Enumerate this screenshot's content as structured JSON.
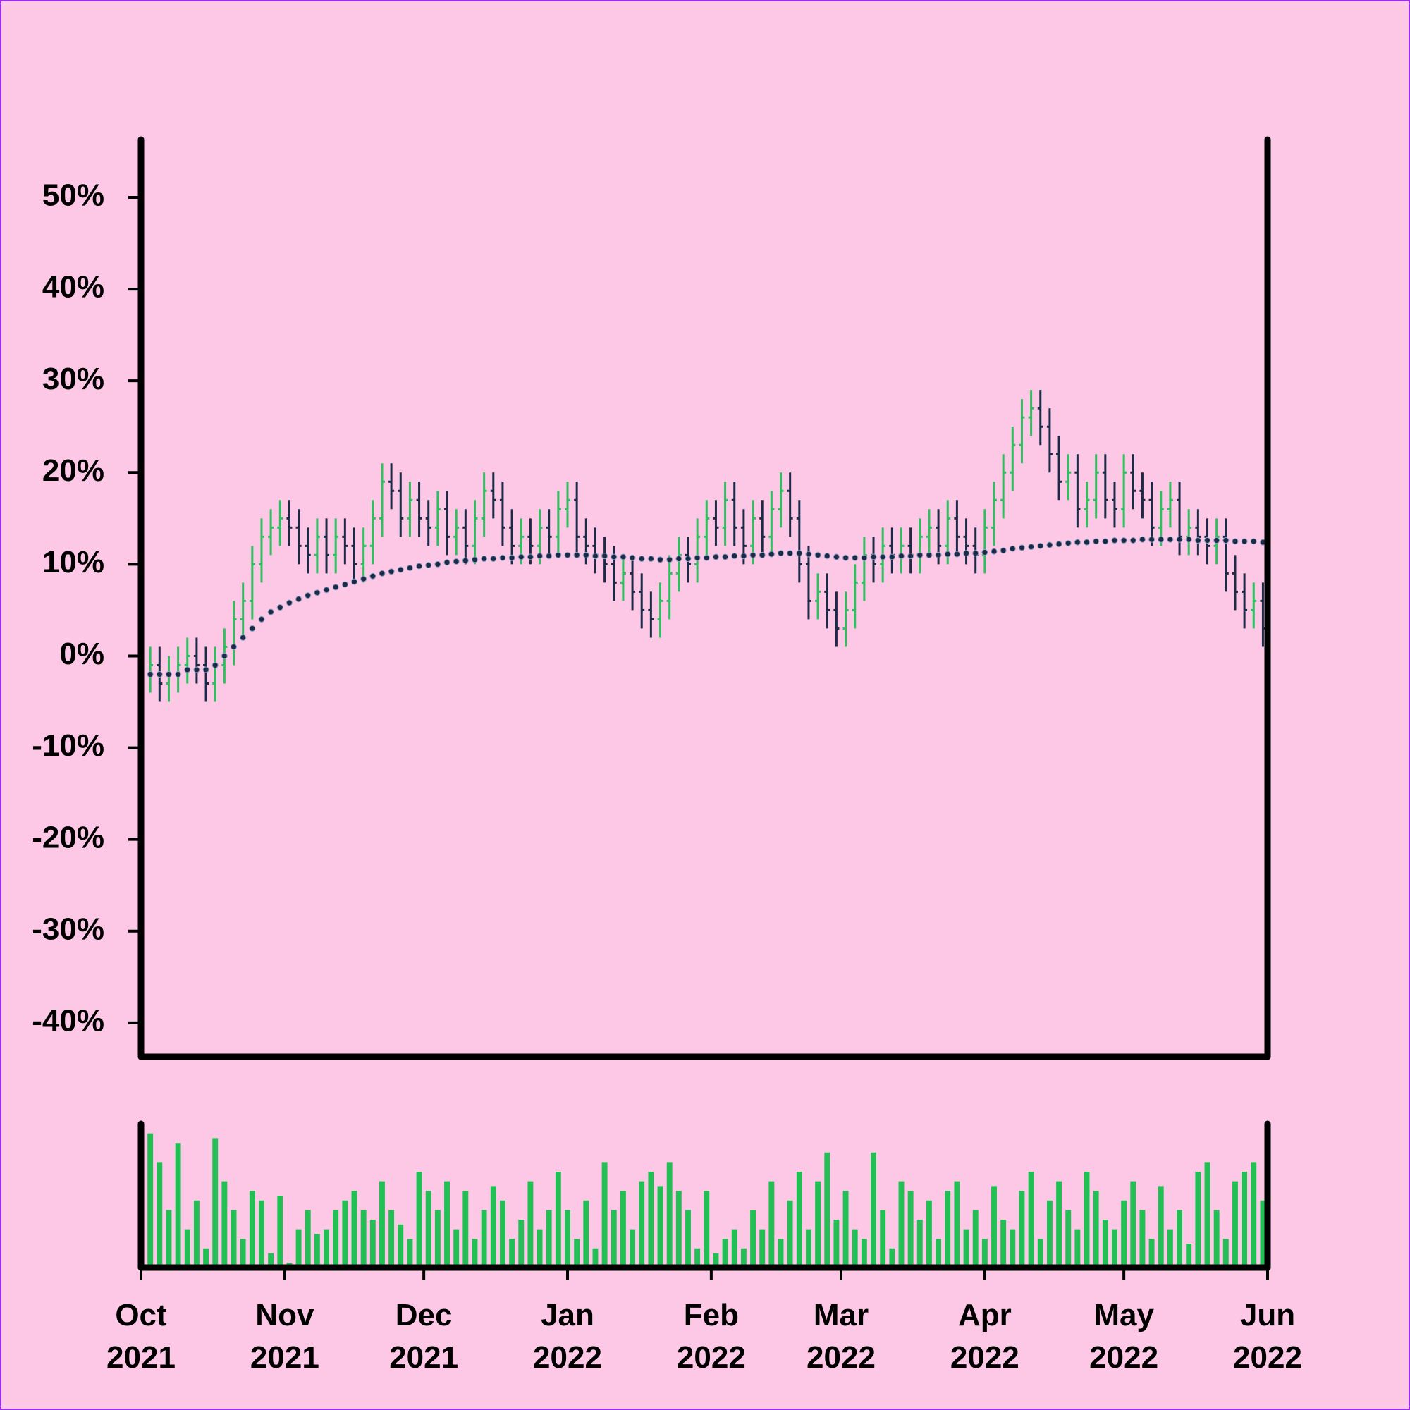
{
  "chart_data": {
    "type": "ohlc",
    "x": [
      0,
      2,
      4,
      6,
      8,
      10,
      12,
      14,
      16,
      18,
      20,
      22,
      24,
      26,
      28,
      30,
      32,
      34,
      36,
      38,
      40,
      42,
      44,
      46,
      48,
      50,
      52,
      54,
      56,
      58,
      60,
      62,
      64,
      66,
      68,
      70,
      72,
      74,
      76,
      78,
      80,
      82,
      84,
      86,
      88,
      90,
      92,
      94,
      96,
      98,
      100,
      102,
      104,
      106,
      108,
      110,
      112,
      114,
      116,
      118,
      120,
      122,
      124,
      126,
      128,
      130,
      132,
      134,
      136,
      138,
      140,
      142,
      144,
      146,
      148,
      150,
      152,
      154,
      156,
      158,
      160,
      162,
      164,
      166,
      168,
      170,
      172,
      174,
      176,
      178,
      180,
      182,
      184,
      186,
      188,
      190,
      192,
      194,
      196,
      198,
      200,
      202,
      204,
      206,
      208,
      210,
      212,
      214,
      216,
      218,
      220,
      222,
      224,
      226,
      228,
      230,
      232,
      234,
      236,
      238,
      240,
      242
    ],
    "xlim": [
      0,
      243
    ],
    "xticks": [
      {
        "value": 0,
        "label": "Oct\n2021"
      },
      {
        "value": 31,
        "label": "Nov\n2021"
      },
      {
        "value": 61,
        "label": "Dec\n2021"
      },
      {
        "value": 92,
        "label": "Jan\n2022"
      },
      {
        "value": 123,
        "label": "Feb\n2022"
      },
      {
        "value": 151,
        "label": "Mar\n2022"
      },
      {
        "value": 182,
        "label": "Apr\n2022"
      },
      {
        "value": 212,
        "label": "May\n2022"
      },
      {
        "value": 243,
        "label": "Jun\n2022"
      }
    ],
    "ylim": [
      -43.7,
      56.3
    ],
    "yticks": [
      {
        "value": -40,
        "label": "-40%"
      },
      {
        "value": -30,
        "label": "-30%"
      },
      {
        "value": -20,
        "label": "-20%"
      },
      {
        "value": -10,
        "label": "-10%"
      },
      {
        "value": 0,
        "label": "0%"
      },
      {
        "value": 10,
        "label": "10%"
      },
      {
        "value": 20,
        "label": "20%"
      },
      {
        "value": 30,
        "label": "30%"
      },
      {
        "value": 40,
        "label": "40%"
      },
      {
        "value": 50,
        "label": "50%"
      }
    ],
    "up_color": "#2fbf5f",
    "down_color": "#1b2a47",
    "open": [
      -1,
      -2,
      -1,
      -3,
      -2,
      -1,
      0,
      -1,
      -3,
      -1,
      1,
      4,
      6,
      10,
      13,
      14,
      15,
      14,
      12,
      11,
      13,
      11,
      13,
      12,
      10,
      12,
      15,
      19,
      18,
      15,
      17,
      15,
      14,
      16,
      13,
      14,
      12,
      15,
      18,
      17,
      14,
      12,
      13,
      12,
      14,
      13,
      16,
      17,
      13,
      12,
      11,
      10,
      8,
      9,
      7,
      5,
      4,
      6,
      9,
      11,
      10,
      13,
      15,
      14,
      17,
      14,
      12,
      15,
      13,
      16,
      18,
      15,
      10,
      6,
      7,
      5,
      3,
      5,
      8,
      11,
      10,
      12,
      11,
      12,
      11,
      13,
      14,
      12,
      15,
      13,
      12,
      11,
      14,
      17,
      20,
      23,
      26,
      27,
      25,
      22,
      19,
      20,
      16,
      17,
      20,
      17,
      16,
      20,
      18,
      17,
      14,
      16,
      17,
      13,
      14,
      13,
      12,
      13,
      9,
      7,
      5,
      6
    ],
    "high": [
      1,
      1,
      1,
      0,
      1,
      2,
      2,
      1,
      1,
      3,
      6,
      8,
      12,
      15,
      16,
      17,
      17,
      16,
      14,
      15,
      15,
      15,
      15,
      14,
      14,
      17,
      21,
      21,
      20,
      19,
      19,
      17,
      18,
      18,
      16,
      16,
      17,
      20,
      20,
      19,
      16,
      15,
      15,
      16,
      16,
      18,
      19,
      19,
      15,
      14,
      13,
      12,
      11,
      11,
      9,
      7,
      8,
      11,
      13,
      13,
      15,
      17,
      17,
      19,
      19,
      16,
      17,
      17,
      18,
      20,
      20,
      17,
      12,
      9,
      9,
      7,
      7,
      10,
      13,
      13,
      14,
      14,
      14,
      14,
      15,
      16,
      16,
      17,
      17,
      15,
      14,
      16,
      19,
      22,
      25,
      28,
      29,
      29,
      27,
      24,
      22,
      22,
      19,
      22,
      22,
      19,
      22,
      22,
      20,
      19,
      18,
      19,
      19,
      16,
      16,
      15,
      15,
      15,
      11,
      9,
      8,
      8
    ],
    "low": [
      -4,
      -4,
      -5,
      -5,
      -4,
      -3,
      -3,
      -5,
      -5,
      -3,
      -1,
      2,
      4,
      8,
      11,
      12,
      12,
      10,
      9,
      9,
      9,
      9,
      10,
      8,
      8,
      10,
      13,
      16,
      13,
      13,
      13,
      12,
      12,
      11,
      11,
      10,
      10,
      13,
      15,
      12,
      10,
      10,
      10,
      10,
      11,
      11,
      14,
      11,
      10,
      9,
      8,
      6,
      6,
      5,
      3,
      2,
      2,
      4,
      7,
      8,
      8,
      11,
      12,
      12,
      12,
      10,
      10,
      11,
      11,
      14,
      13,
      8,
      4,
      4,
      3,
      1,
      1,
      3,
      6,
      8,
      8,
      9,
      9,
      9,
      9,
      11,
      10,
      10,
      11,
      10,
      9,
      9,
      12,
      15,
      18,
      21,
      24,
      23,
      20,
      17,
      17,
      14,
      14,
      15,
      15,
      14,
      14,
      16,
      15,
      12,
      12,
      14,
      11,
      11,
      11,
      10,
      10,
      7,
      5,
      3,
      3,
      1
    ],
    "close": [
      -2,
      -1,
      -3,
      -2,
      -1,
      0,
      -1,
      -3,
      -1,
      1,
      4,
      6,
      10,
      13,
      14,
      15,
      14,
      12,
      11,
      13,
      11,
      13,
      12,
      10,
      12,
      15,
      19,
      18,
      15,
      17,
      15,
      14,
      16,
      13,
      14,
      12,
      15,
      18,
      17,
      14,
      12,
      13,
      12,
      14,
      13,
      16,
      17,
      13,
      12,
      11,
      10,
      8,
      9,
      7,
      5,
      4,
      6,
      9,
      11,
      10,
      13,
      15,
      14,
      17,
      14,
      12,
      15,
      13,
      16,
      18,
      15,
      10,
      6,
      7,
      5,
      3,
      5,
      8,
      11,
      10,
      12,
      11,
      12,
      11,
      13,
      14,
      12,
      15,
      13,
      12,
      11,
      14,
      17,
      20,
      23,
      26,
      27,
      25,
      22,
      19,
      20,
      16,
      17,
      20,
      17,
      16,
      20,
      18,
      17,
      14,
      16,
      17,
      13,
      14,
      13,
      12,
      13,
      9,
      7,
      5,
      6,
      3
    ],
    "ma": {
      "color": "#1b2a47",
      "values": [
        -2,
        -2,
        -2,
        -2,
        -2,
        -1.5,
        -1.5,
        -1.5,
        -1,
        0,
        1,
        2,
        3,
        4,
        4.8,
        5.3,
        5.8,
        6.2,
        6.6,
        6.9,
        7.2,
        7.5,
        7.8,
        8.1,
        8.4,
        8.7,
        9,
        9.2,
        9.4,
        9.6,
        9.8,
        9.9,
        10,
        10.2,
        10.3,
        10.4,
        10.5,
        10.6,
        10.6,
        10.7,
        10.7,
        10.8,
        10.8,
        10.9,
        10.9,
        11,
        11,
        11,
        11,
        10.9,
        10.9,
        10.8,
        10.8,
        10.7,
        10.6,
        10.6,
        10.5,
        10.5,
        10.6,
        10.6,
        10.7,
        10.7,
        10.8,
        10.8,
        10.9,
        10.9,
        11,
        11,
        11.1,
        11.2,
        11.2,
        11.2,
        11.1,
        11,
        10.9,
        10.8,
        10.7,
        10.7,
        10.7,
        10.8,
        10.8,
        10.8,
        10.9,
        10.9,
        11,
        11,
        11,
        11.1,
        11.1,
        11.2,
        11.2,
        11.3,
        11.4,
        11.5,
        11.7,
        11.8,
        11.9,
        12,
        12.1,
        12.2,
        12.3,
        12.4,
        12.4,
        12.5,
        12.5,
        12.6,
        12.6,
        12.6,
        12.7,
        12.7,
        12.7,
        12.7,
        12.7,
        12.7,
        12.6,
        12.6,
        12.6,
        12.6,
        12.5,
        12.5,
        12.5,
        12.4
      ]
    },
    "volume": {
      "color": "#22bf55",
      "ylim": [
        0,
        150
      ],
      "values": [
        20,
        140,
        110,
        60,
        130,
        40,
        70,
        20,
        135,
        90,
        60,
        30,
        80,
        70,
        15,
        75,
        5,
        40,
        60,
        35,
        40,
        60,
        70,
        80,
        60,
        50,
        90,
        60,
        45,
        30,
        100,
        80,
        60,
        90,
        40,
        80,
        30,
        60,
        85,
        70,
        30,
        50,
        90,
        40,
        60,
        100,
        60,
        30,
        70,
        20,
        110,
        60,
        80,
        40,
        90,
        100,
        85,
        110,
        80,
        60,
        20,
        80,
        15,
        30,
        40,
        20,
        60,
        40,
        90,
        30,
        70,
        100,
        40,
        90,
        120,
        50,
        80,
        40,
        30,
        120,
        60,
        20,
        90,
        80,
        50,
        70,
        30,
        80,
        90,
        40,
        60,
        30,
        85,
        50,
        40,
        80,
        100,
        30,
        70,
        90,
        60,
        40,
        100,
        80,
        50,
        40,
        70,
        90,
        60,
        30,
        85,
        40,
        60,
        25,
        100,
        110,
        60,
        30,
        90,
        100,
        110,
        70
      ]
    }
  }
}
